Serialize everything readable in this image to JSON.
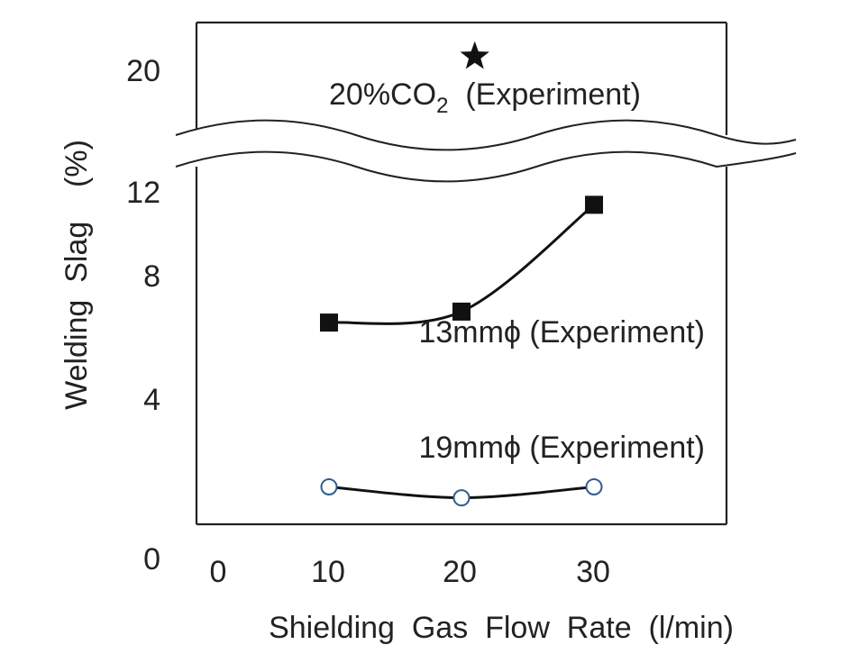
{
  "chart_data": {
    "type": "line",
    "title": "",
    "xlabel": "Shielding  Gas  Flow  Rate  (l/min)",
    "ylabel": "Welding  Slag    (%)",
    "xlim": [
      0,
      40
    ],
    "ylim": [
      0,
      12
    ],
    "x_ticks": [
      "0",
      "10",
      "20",
      "30"
    ],
    "y_ticks": [
      "0",
      "4",
      "8",
      "12",
      "20"
    ],
    "axis_break": {
      "from": 13,
      "to": 19,
      "style": "wavy"
    },
    "series": [
      {
        "name": "13mmϕ (Experiment)",
        "marker": "filled-square",
        "color": "#111111",
        "x": [
          10,
          20,
          30
        ],
        "y": [
          7.3,
          7.7,
          11.6
        ]
      },
      {
        "name": "19mmϕ (Experiment)",
        "marker": "open-circle",
        "color": "#111111",
        "marker_edge": "#2f5d8a",
        "x": [
          10,
          20,
          30
        ],
        "y": [
          1.3,
          0.9,
          1.3
        ]
      }
    ],
    "reference_point": {
      "label_main": "20%CO",
      "label_sub": "2",
      "label_tail": "  (Experiment)",
      "marker": "star",
      "x": 21,
      "y": 20.5
    },
    "grid": false,
    "legend": "none"
  }
}
